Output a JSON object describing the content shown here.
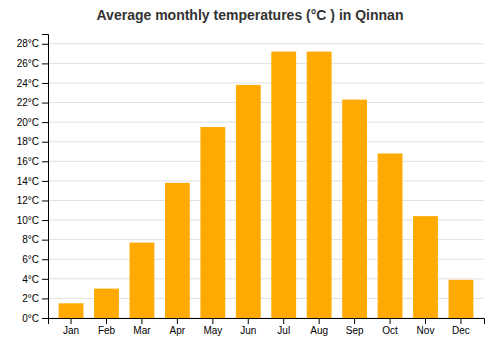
{
  "chart_data": {
    "type": "bar",
    "title": "Average monthly temperatures (°C ) in Qinnan",
    "categories": [
      "Jan",
      "Feb",
      "Mar",
      "Apr",
      "May",
      "Jun",
      "Jul",
      "Aug",
      "Sep",
      "Oct",
      "Nov",
      "Dec"
    ],
    "values": [
      1.5,
      3.0,
      7.7,
      13.8,
      19.5,
      23.8,
      27.2,
      27.2,
      22.3,
      16.8,
      10.4,
      3.9
    ],
    "color": "#FFAA00",
    "ylim": [
      0,
      29
    ],
    "yticks": [
      {
        "value": 0,
        "label": "0°C"
      },
      {
        "value": 2,
        "label": "2°C"
      },
      {
        "value": 4,
        "label": "4°C"
      },
      {
        "value": 6,
        "label": "6°C"
      },
      {
        "value": 8,
        "label": "8°C"
      },
      {
        "value": 10,
        "label": "10°C"
      },
      {
        "value": 12,
        "label": "12°C"
      },
      {
        "value": 14,
        "label": "14°C"
      },
      {
        "value": 16,
        "label": "16°C"
      },
      {
        "value": 18,
        "label": "18°C"
      },
      {
        "value": 20,
        "label": "20°C"
      },
      {
        "value": 22,
        "label": "22°C"
      },
      {
        "value": 24,
        "label": "24°C"
      },
      {
        "value": 26,
        "label": "26°C"
      },
      {
        "value": 28,
        "label": "28°C"
      }
    ],
    "grid": true
  }
}
